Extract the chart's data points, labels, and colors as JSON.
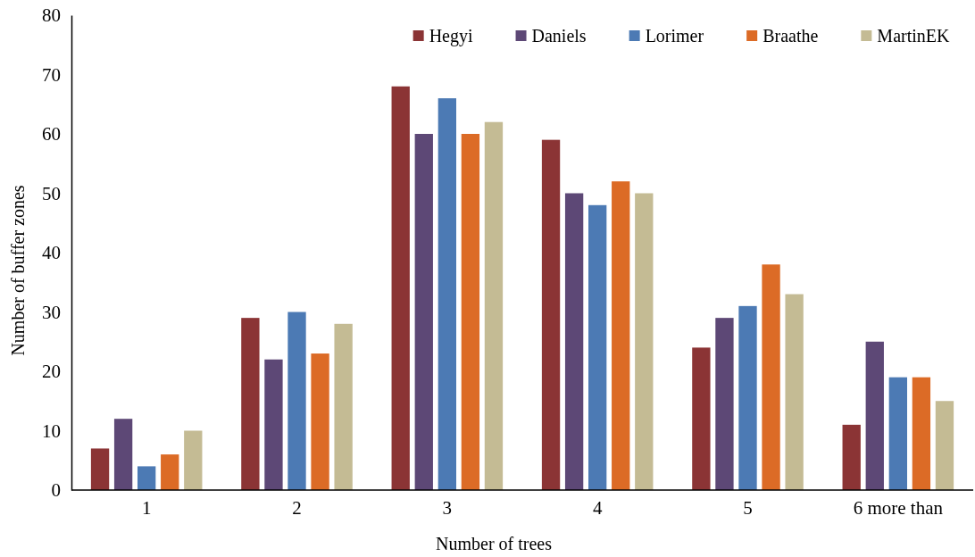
{
  "chart_data": {
    "type": "bar",
    "xlabel": "Number of trees",
    "ylabel": "Number of buffer zones",
    "categories": [
      "1",
      "2",
      "3",
      "4",
      "5",
      "6 more than"
    ],
    "series": [
      {
        "name": "Hegyi",
        "color": "#8b3435",
        "values": [
          7,
          29,
          68,
          59,
          24,
          11
        ]
      },
      {
        "name": "Daniels",
        "color": "#5d4876",
        "values": [
          12,
          22,
          60,
          50,
          29,
          25
        ]
      },
      {
        "name": "Lorimer",
        "color": "#4c7ab4",
        "values": [
          4,
          30,
          66,
          48,
          31,
          19
        ]
      },
      {
        "name": "Braathe",
        "color": "#dc6b26",
        "values": [
          6,
          23,
          60,
          52,
          38,
          19
        ]
      },
      {
        "name": "MartinEK",
        "color": "#c4bb94",
        "values": [
          10,
          28,
          62,
          50,
          33,
          15
        ]
      }
    ],
    "ylim": [
      0,
      80
    ],
    "yticks": [
      0,
      10,
      20,
      30,
      40,
      50,
      60,
      70,
      80
    ],
    "grid": false,
    "legend": "top right"
  }
}
